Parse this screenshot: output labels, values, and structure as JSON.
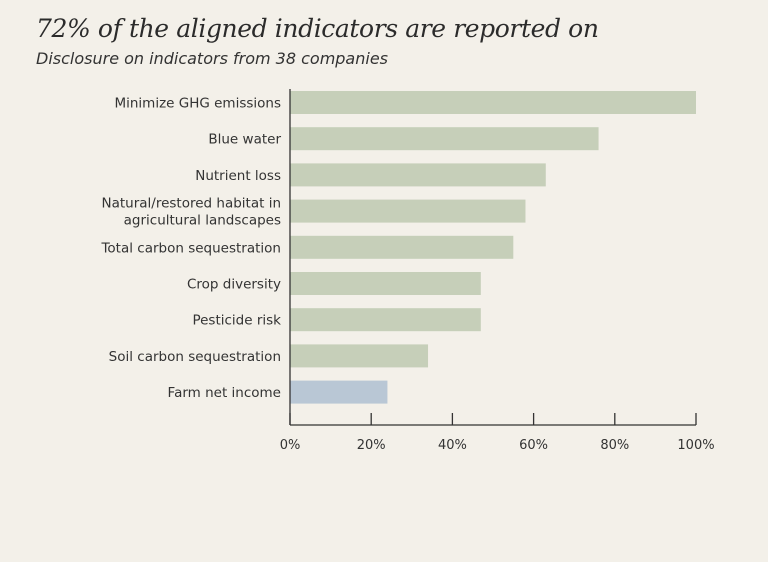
{
  "header": {
    "title": "72% of the aligned indicators are reported on",
    "subtitle": "Disclosure on indicators from 38 companies"
  },
  "chart_data": {
    "type": "bar",
    "orientation": "horizontal",
    "title": "72% of the aligned indicators are reported on",
    "subtitle": "Disclosure on indicators from 38 companies",
    "xlabel": "",
    "ylabel": "",
    "xlim": [
      0,
      100
    ],
    "grid": false,
    "categories": [
      "Minimize GHG emissions",
      "Blue water",
      "Nutrient loss",
      "Natural/restored habitat in agricultural landscapes",
      "Total carbon sequestration",
      "Crop diversity",
      "Pesticide risk",
      "Soil carbon sequestration",
      "Farm net income"
    ],
    "category_lines": [
      [
        "Minimize GHG emissions"
      ],
      [
        "Blue water"
      ],
      [
        "Nutrient loss"
      ],
      [
        "Natural/restored habitat in",
        "agricultural landscapes"
      ],
      [
        "Total carbon sequestration"
      ],
      [
        "Crop diversity"
      ],
      [
        "Pesticide risk"
      ],
      [
        "Soil carbon sequestration"
      ],
      [
        "Farm net income"
      ]
    ],
    "values": [
      100,
      76,
      63,
      58,
      55,
      47,
      47,
      34,
      24
    ],
    "x_ticks": [
      0,
      20,
      40,
      60,
      80,
      100
    ],
    "x_tick_labels": [
      "0%",
      "20%",
      "40%",
      "60%",
      "80%",
      "100%"
    ],
    "colors": {
      "bar": "#c6cfb9",
      "highlight": "#b9c7d5",
      "axis": "#333333"
    },
    "highlight_categories": [
      "Farm net income"
    ]
  }
}
